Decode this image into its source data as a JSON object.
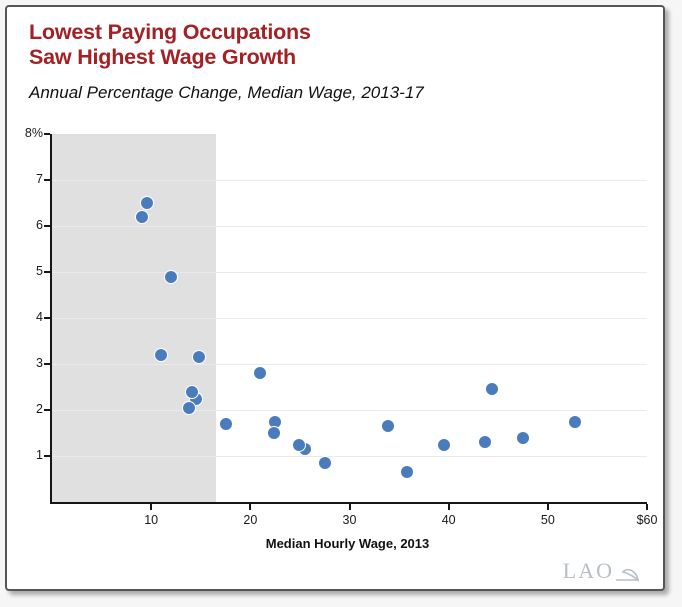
{
  "header": {
    "title_line1": "Lowest Paying Occupations",
    "title_line2": "Saw Highest Wage Growth",
    "subtitle": "Annual Percentage Change, Median Wage, 2013-17"
  },
  "footer": {
    "logo_text": "LAO"
  },
  "chart_data": {
    "type": "scatter",
    "title": "Lowest Paying Occupations Saw Highest Wage Growth",
    "subtitle": "Annual Percentage Change, Median Wage, 2013-17",
    "xlabel": "Median Hourly Wage, 2013",
    "ylabel": "Annual percentage change, median wage, 2013-17",
    "xlim": [
      0,
      60
    ],
    "ylim": [
      0,
      8
    ],
    "x_ticks": [
      10,
      20,
      30,
      40,
      50,
      60
    ],
    "x_tick_labels": [
      "10",
      "20",
      "30",
      "40",
      "50",
      "$60"
    ],
    "y_ticks": [
      1,
      2,
      3,
      4,
      5,
      6,
      7,
      8
    ],
    "y_tick_labels": [
      "1",
      "2",
      "3",
      "4",
      "5",
      "6",
      "7",
      "8%"
    ],
    "gridline_values": [
      1,
      2,
      3,
      4,
      5,
      6,
      7
    ],
    "grid": "on",
    "legend": "none",
    "shaded_region": {
      "x_min": 0,
      "x_max": 16.5
    },
    "points": [
      [
        9.6,
        6.5
      ],
      [
        9.1,
        6.2
      ],
      [
        12.0,
        4.9
      ],
      [
        11.0,
        3.2
      ],
      [
        14.8,
        3.15
      ],
      [
        14.5,
        2.25
      ],
      [
        14.1,
        2.4
      ],
      [
        13.8,
        2.05
      ],
      [
        17.5,
        1.7
      ],
      [
        21.0,
        2.8
      ],
      [
        22.5,
        1.75
      ],
      [
        22.4,
        1.5
      ],
      [
        25.5,
        1.15
      ],
      [
        24.9,
        1.25
      ],
      [
        27.5,
        0.85
      ],
      [
        33.9,
        1.65
      ],
      [
        35.8,
        0.65
      ],
      [
        39.5,
        1.25
      ],
      [
        43.7,
        1.3
      ],
      [
        44.4,
        2.45
      ],
      [
        47.5,
        1.4
      ],
      [
        52.7,
        1.75
      ]
    ]
  },
  "colors": {
    "title_red": "#a32125",
    "marker_blue": "#4a7cbd",
    "marker_outline": "#ffffff",
    "shaded_region_gray": "#e0e0e0",
    "gridline_gray": "#eaeaea",
    "axis_black": "#161616",
    "logo_gray": "#b7bec6"
  }
}
